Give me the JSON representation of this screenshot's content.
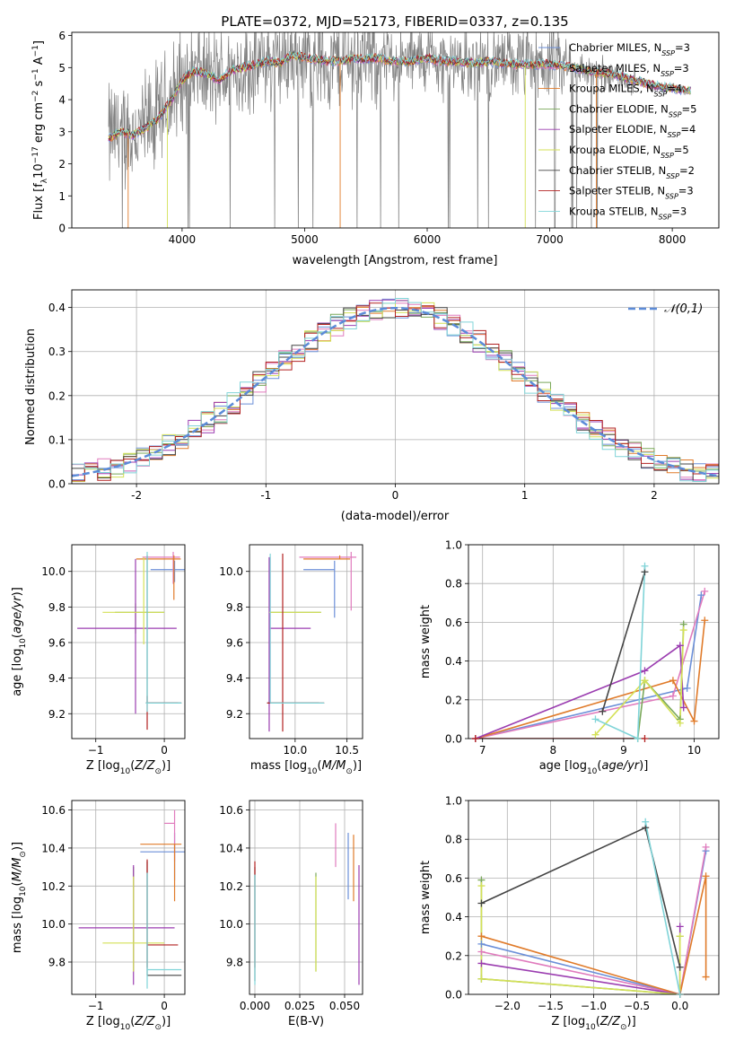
{
  "figure_title": "PLATE=0372, MJD=52173, FIBERID=0337, z=0.135",
  "colors": {
    "Chabrier MILES": "#6b8fd8",
    "Salpeter MILES": "#e07bbd",
    "Kroupa MILES": "#e07b2a",
    "Chabrier ELODIE": "#7aa85a",
    "Salpeter ELODIE": "#9b3db0",
    "Kroupa ELODIE": "#d4e157",
    "Chabrier STELIB": "#444444",
    "Salpeter STELIB": "#b22222",
    "Kroupa STELIB": "#80d4d8",
    "data": "#808080",
    "normal": "#5b8bd8",
    "grid": "#b0b0b0"
  },
  "chart_data": [
    {
      "id": "spectrum",
      "type": "line",
      "xlabel": "wavelength [Angstrom, rest frame]",
      "ylabel": "Flux [f_λ10^-17 erg cm^-2 s^-1 A^-1]",
      "xlim": [
        3100,
        8380
      ],
      "ylim": [
        0,
        6.1
      ],
      "xticks": [
        4000,
        5000,
        6000,
        7000,
        8000
      ],
      "yticks": [
        0,
        1,
        2,
        3,
        4,
        5,
        6
      ],
      "grid": false,
      "legend_position": "top-right",
      "legend": [
        {
          "name": "Chabrier MILES",
          "nssp": "N_SSP=3"
        },
        {
          "name": "Salpeter MILES",
          "nssp": "N_SSP=3"
        },
        {
          "name": "Kroupa MILES",
          "nssp": "N_SSP=4"
        },
        {
          "name": "Chabrier ELODIE",
          "nssp": "N_SSP=5"
        },
        {
          "name": "Salpeter ELODIE",
          "nssp": "N_SSP=4"
        },
        {
          "name": "Kroupa ELODIE",
          "nssp": "N_SSP=5"
        },
        {
          "name": "Chabrier STELIB",
          "nssp": "N_SSP=2"
        },
        {
          "name": "Salpeter STELIB",
          "nssp": "N_SSP=3"
        },
        {
          "name": "Kroupa STELIB",
          "nssp": "N_SSP=3"
        }
      ],
      "model_continuum": {
        "x": [
          3400,
          3500,
          3600,
          3700,
          3800,
          3900,
          4000,
          4100,
          4200,
          4300,
          4400,
          4500,
          4600,
          4700,
          4800,
          4900,
          5000,
          5100,
          5200,
          5300,
          5400,
          5500,
          5600,
          5700,
          5800,
          5900,
          6000,
          6100,
          6200,
          6300,
          6400,
          6500,
          6600,
          6700,
          6800,
          6900,
          7000,
          7100,
          7200,
          7300,
          7400,
          7500,
          7600,
          7700,
          7800,
          7900,
          8000,
          8100
        ],
        "y": [
          2.8,
          3.0,
          2.9,
          3.1,
          3.4,
          3.9,
          4.6,
          4.9,
          4.8,
          4.6,
          4.9,
          5.0,
          5.1,
          5.2,
          5.15,
          5.4,
          5.3,
          5.25,
          5.2,
          5.2,
          5.3,
          5.25,
          5.3,
          5.2,
          5.2,
          5.2,
          5.3,
          5.2,
          5.2,
          5.15,
          5.15,
          5.2,
          5.15,
          5.1,
          5.1,
          5.1,
          5.1,
          5.05,
          5.0,
          4.9,
          4.85,
          4.8,
          4.7,
          4.6,
          4.5,
          4.4,
          4.35,
          4.3
        ]
      }
    },
    {
      "id": "residuals",
      "type": "histogram",
      "xlabel": "(data-model)/error",
      "ylabel": "Normed distribution",
      "xlim": [
        -2.5,
        2.5
      ],
      "ylim": [
        0,
        0.44
      ],
      "xticks": [
        -2,
        -1,
        0,
        1,
        2
      ],
      "yticks": [
        0.0,
        0.1,
        0.2,
        0.3,
        0.4
      ],
      "grid": true,
      "legend_position": "top-right",
      "legend": [
        {
          "name": "𝒩(0,1)"
        }
      ],
      "bin_width": 0.1,
      "bin_start": -2.5
    },
    {
      "id": "age-vs-Z",
      "type": "errorbar",
      "xlabel": "Z [log10(Z/Z⊙)]",
      "ylabel": "age  [log10(age/yr)]",
      "xlim": [
        -1.35,
        0.3
      ],
      "ylim": [
        9.06,
        10.15
      ],
      "xticks": [
        -1,
        0
      ],
      "yticks": [
        9.2,
        9.4,
        9.6,
        9.8,
        10.0
      ],
      "grid": true,
      "points": [
        {
          "model": "Chabrier MILES",
          "x": 0.15,
          "xerr": [
            0.35,
            0.15
          ],
          "y": 10.01,
          "yerr": [
            0.07,
            0.05
          ]
        },
        {
          "model": "Salpeter MILES",
          "x": 0.13,
          "xerr": [
            0.45,
            0.1
          ],
          "y": 10.08,
          "yerr": [
            0.15,
            0.03
          ]
        },
        {
          "model": "Kroupa MILES",
          "x": 0.14,
          "xerr": [
            0.55,
            0.1
          ],
          "y": 10.07,
          "yerr": [
            0.23,
            0.02
          ]
        },
        {
          "model": "Chabrier ELODIE",
          "x": -0.42,
          "xerr": [
            0.3,
            0.42
          ],
          "y": 9.77,
          "yerr": [
            0.12,
            0.05
          ]
        },
        {
          "model": "Salpeter ELODIE",
          "x": -0.42,
          "xerr": [
            0.85,
            0.6
          ],
          "y": 9.68,
          "yerr": [
            0.48,
            0.39
          ]
        },
        {
          "model": "Kroupa ELODIE",
          "x": -0.3,
          "xerr": [
            0.6,
            0.3
          ],
          "y": 9.77,
          "yerr": [
            0.18,
            0.31
          ]
        },
        {
          "model": "Chabrier STELIB",
          "x": -0.25,
          "xerr": [
            0.02,
            0.5
          ],
          "y": 9.26,
          "yerr": [
            0.0,
            0.83
          ]
        },
        {
          "model": "Salpeter STELIB",
          "x": -0.25,
          "xerr": [
            0.02,
            0.45
          ],
          "y": 9.26,
          "yerr": [
            0.15,
            0.04
          ]
        },
        {
          "model": "Kroupa STELIB",
          "x": -0.25,
          "xerr": [
            0.02,
            0.5
          ],
          "y": 9.26,
          "yerr": [
            0.05,
            0.85
          ]
        }
      ]
    },
    {
      "id": "age-vs-mass",
      "type": "errorbar",
      "xlabel": "mass [log10(M/M⊙)]",
      "ylabel": "",
      "xlim": [
        9.56,
        10.65
      ],
      "ylim": [
        9.06,
        10.15
      ],
      "xticks": [
        10.0,
        10.5
      ],
      "yticks": [
        9.2,
        9.4,
        9.6,
        9.8,
        10.0
      ],
      "grid": true,
      "points": [
        {
          "model": "Chabrier MILES",
          "x": 10.38,
          "xerr": [
            0.3,
            0.0
          ],
          "y": 10.01,
          "yerr": [
            0.27,
            0.05
          ]
        },
        {
          "model": "Salpeter MILES",
          "x": 10.54,
          "xerr": [
            0.5,
            0.05
          ],
          "y": 10.08,
          "yerr": [
            0.3,
            0.03
          ]
        },
        {
          "model": "Kroupa MILES",
          "x": 10.43,
          "xerr": [
            0.35,
            0.1
          ],
          "y": 10.07,
          "yerr": [
            0.0,
            0.02
          ]
        },
        {
          "model": "Chabrier ELODIE",
          "x": 9.9,
          "xerr": [
            0.15,
            0.35
          ],
          "y": 9.77,
          "yerr": [
            0.0,
            0.0
          ]
        },
        {
          "model": "Salpeter ELODIE",
          "x": 9.75,
          "xerr": [
            0.0,
            0.4
          ],
          "y": 9.68,
          "yerr": [
            0.58,
            0.4
          ]
        },
        {
          "model": "Kroupa ELODIE",
          "x": 9.9,
          "xerr": [
            0.15,
            0.35
          ],
          "y": 9.77,
          "yerr": [
            0.0,
            0.0
          ]
        },
        {
          "model": "Chabrier STELIB",
          "x": 9.73,
          "xerr": [
            0.0,
            0.5
          ],
          "y": 9.26,
          "yerr": [
            0.0,
            0.0
          ]
        },
        {
          "model": "Salpeter STELIB",
          "x": 9.88,
          "xerr": [
            0.15,
            0.4
          ],
          "y": 9.26,
          "yerr": [
            0.16,
            0.84
          ]
        },
        {
          "model": "Kroupa STELIB",
          "x": 9.76,
          "xerr": [
            0.0,
            0.52
          ],
          "y": 9.26,
          "yerr": [
            0.0,
            0.84
          ]
        }
      ]
    },
    {
      "id": "mass-weight-vs-age",
      "type": "line",
      "xlabel": "age  [log10(age/yr)]",
      "ylabel": "mass weight",
      "xlim": [
        6.8,
        10.35
      ],
      "ylim": [
        0.0,
        1.0
      ],
      "xticks": [
        7,
        8,
        9,
        10
      ],
      "yticks": [
        0.0,
        0.2,
        0.4,
        0.6,
        0.8,
        1.0
      ],
      "grid": true,
      "series": [
        {
          "model": "Chabrier MILES",
          "x": [
            6.9,
            9.9,
            10.1
          ],
          "y": [
            0.0,
            0.26,
            0.74
          ]
        },
        {
          "model": "Salpeter MILES",
          "x": [
            6.9,
            9.7,
            10.15
          ],
          "y": [
            0.0,
            0.22,
            0.76
          ]
        },
        {
          "model": "Kroupa MILES",
          "x": [
            6.9,
            9.7,
            10.0,
            10.15
          ],
          "y": [
            0.0,
            0.3,
            0.09,
            0.61
          ]
        },
        {
          "model": "Chabrier ELODIE",
          "x": [
            9.2,
            9.3,
            9.8,
            9.85
          ],
          "y": [
            0.0,
            0.3,
            0.1,
            0.59
          ]
        },
        {
          "model": "Salpeter ELODIE",
          "x": [
            6.9,
            9.3,
            9.8,
            9.85
          ],
          "y": [
            0.0,
            0.35,
            0.48,
            0.16
          ]
        },
        {
          "model": "Kroupa ELODIE",
          "x": [
            8.6,
            9.3,
            9.8,
            9.85
          ],
          "y": [
            0.02,
            0.3,
            0.08,
            0.56
          ]
        },
        {
          "model": "Chabrier STELIB",
          "x": [
            8.7,
            9.3
          ],
          "y": [
            0.14,
            0.86
          ]
        },
        {
          "model": "Salpeter STELIB",
          "x": [
            6.9,
            9.3
          ],
          "y": [
            0.0,
            0.0
          ]
        },
        {
          "model": "Kroupa STELIB",
          "x": [
            8.6,
            9.2,
            9.3
          ],
          "y": [
            0.1,
            0.0,
            0.89
          ]
        }
      ]
    },
    {
      "id": "mass-vs-Z",
      "type": "errorbar",
      "xlabel": "Z [log10(Z/Z⊙)]",
      "ylabel": "mass [log10(M/M⊙)]",
      "xlim": [
        -1.35,
        0.3
      ],
      "ylim": [
        9.63,
        10.65
      ],
      "xticks": [
        -1,
        0
      ],
      "yticks": [
        9.8,
        10.0,
        10.2,
        10.4,
        10.6
      ],
      "grid": true,
      "points": [
        {
          "model": "Chabrier MILES",
          "x": 0.15,
          "xerr": [
            0.5,
            0.15
          ],
          "y": 10.38,
          "yerr": [
            0.15,
            0.1
          ]
        },
        {
          "model": "Salpeter MILES",
          "x": 0.15,
          "xerr": [
            0.15,
            0.0
          ],
          "y": 10.53,
          "yerr": [
            0.2,
            0.07
          ]
        },
        {
          "model": "Kroupa MILES",
          "x": 0.15,
          "xerr": [
            0.5,
            0.1
          ],
          "y": 10.42,
          "yerr": [
            0.3,
            0.0
          ]
        },
        {
          "model": "Chabrier ELODIE",
          "x": -0.45,
          "xerr": [
            0.0,
            0.0
          ],
          "y": 9.9,
          "yerr": [
            0.15,
            0.4
          ]
        },
        {
          "model": "Salpeter ELODIE",
          "x": -0.45,
          "xerr": [
            0.8,
            0.6
          ],
          "y": 9.98,
          "yerr": [
            0.3,
            0.33
          ]
        },
        {
          "model": "Kroupa ELODIE",
          "x": -0.45,
          "xerr": [
            0.45,
            0.45
          ],
          "y": 9.9,
          "yerr": [
            0.15,
            0.35
          ]
        },
        {
          "model": "Chabrier STELIB",
          "x": -0.25,
          "xerr": [
            0.0,
            0.5
          ],
          "y": 9.73,
          "yerr": [
            0.0,
            0.6
          ]
        },
        {
          "model": "Salpeter STELIB",
          "x": -0.25,
          "xerr": [
            0.0,
            0.45
          ],
          "y": 9.89,
          "yerr": [
            0.12,
            0.45
          ]
        },
        {
          "model": "Kroupa STELIB",
          "x": -0.25,
          "xerr": [
            0.0,
            0.5
          ],
          "y": 9.76,
          "yerr": [
            0.1,
            0.51
          ]
        }
      ]
    },
    {
      "id": "mass-vs-EBV",
      "type": "errorbar",
      "xlabel": "E(B-V)",
      "ylabel": "",
      "xlim": [
        -0.003,
        0.06
      ],
      "ylim": [
        9.63,
        10.65
      ],
      "xticks": [
        0.0,
        0.025,
        0.05
      ],
      "yticks": [
        9.8,
        10.0,
        10.2,
        10.4,
        10.6
      ],
      "grid": true,
      "points": [
        {
          "model": "Chabrier MILES",
          "x": 0.052,
          "y": 10.38,
          "yerr": [
            0.25,
            0.1
          ]
        },
        {
          "model": "Salpeter MILES",
          "x": 0.045,
          "y": 10.38,
          "yerr": [
            0.08,
            0.15
          ]
        },
        {
          "model": "Kroupa MILES",
          "x": 0.055,
          "y": 10.35,
          "yerr": [
            0.23,
            0.12
          ]
        },
        {
          "model": "Chabrier ELODIE",
          "x": 0.034,
          "y": 10.0,
          "yerr": [
            0.25,
            0.27
          ]
        },
        {
          "model": "Salpeter ELODIE",
          "x": 0.058,
          "y": 9.98,
          "yerr": [
            0.3,
            0.33
          ]
        },
        {
          "model": "Kroupa ELODIE",
          "x": 0.034,
          "y": 10.0,
          "yerr": [
            0.25,
            0.25
          ]
        },
        {
          "model": "Chabrier STELIB",
          "x": 0.0,
          "y": 10.0,
          "yerr": [
            0.3,
            0.3
          ]
        },
        {
          "model": "Salpeter STELIB",
          "x": 0.0,
          "y": 10.05,
          "yerr": [
            0.28,
            0.28
          ]
        },
        {
          "model": "Kroupa STELIB",
          "x": 0.0,
          "y": 10.0,
          "yerr": [
            0.32,
            0.26
          ]
        }
      ]
    },
    {
      "id": "mass-weight-vs-Z",
      "type": "line",
      "xlabel": "Z [log10(Z/Z⊙)]",
      "ylabel": "mass weight",
      "xlim": [
        -2.45,
        0.45
      ],
      "ylim": [
        0.0,
        1.0
      ],
      "xticks": [
        -2.0,
        -1.5,
        -1.0,
        -0.5,
        0.0
      ],
      "yticks": [
        0.0,
        0.2,
        0.4,
        0.6,
        0.8,
        1.0
      ],
      "grid": true,
      "series": [
        {
          "model": "Chabrier MILES",
          "x": [
            -2.3,
            0.0,
            0.3
          ],
          "y": [
            0.26,
            0.0,
            0.74
          ]
        },
        {
          "model": "Salpeter MILES",
          "x": [
            -2.3,
            0.0,
            0.3
          ],
          "y": [
            0.22,
            0.0,
            0.76
          ]
        },
        {
          "model": "Kroupa MILES",
          "x": [
            -2.3,
            0.0,
            0.3,
            0.3
          ],
          "y": [
            0.3,
            0.0,
            0.61,
            0.09
          ]
        },
        {
          "model": "Chabrier ELODIE",
          "x": [
            -2.3,
            -2.3,
            0.0,
            0.0
          ],
          "y": [
            0.59,
            0.08,
            0.0,
            0.3
          ]
        },
        {
          "model": "Salpeter ELODIE",
          "x": [
            -2.3,
            0.0,
            0.0
          ],
          "y": [
            0.16,
            0.0,
            0.35
          ]
        },
        {
          "model": "Kroupa ELODIE",
          "x": [
            -2.3,
            -2.3,
            0.0,
            0.0
          ],
          "y": [
            0.56,
            0.08,
            0.0,
            0.3
          ]
        },
        {
          "model": "Chabrier STELIB",
          "x": [
            -2.3,
            -0.4,
            0.0
          ],
          "y": [
            0.47,
            0.86,
            0.14
          ]
        },
        {
          "model": "Salpeter STELIB",
          "x": [
            0.0
          ],
          "y": [
            0.0
          ]
        },
        {
          "model": "Kroupa STELIB",
          "x": [
            -0.4,
            0.0
          ],
          "y": [
            0.89,
            0.0
          ]
        }
      ]
    }
  ]
}
